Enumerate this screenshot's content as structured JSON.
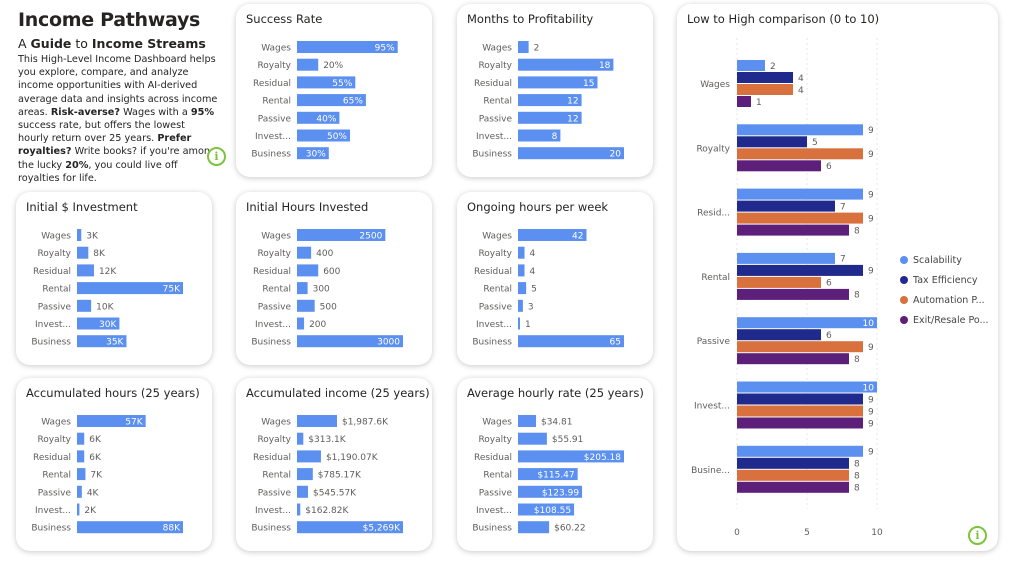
{
  "intro": {
    "title": "Income Pathways",
    "subtitle_pre": "A ",
    "subtitle_b1": "Guide",
    "subtitle_mid": " to ",
    "subtitle_b2": "Income Streams",
    "p1": "This High-Level Income Dashboard helps you explore, compare, and analyze income opportunities with AI-derived average data and insights across income areas. ",
    "b1": "Risk-averse?",
    "p2": " Wages with a ",
    "b2": "95%",
    "p3": " success rate, but offers the lowest hourly return over 25 years. ",
    "b3": "Prefer royalties?",
    "p4": " Write books? if you're among the lucky ",
    "b4": "20%",
    "p5": ", you could live off royalties for life."
  },
  "icons": {
    "info": "i",
    "info_icon_name": "info-circle-icon"
  },
  "colors": {
    "bar": "#5b8ff0",
    "scalability": "#5b8ff0",
    "tax_efficiency": "#1f2a8c",
    "automation": "#d9713e",
    "exit_resale": "#5c1f7a",
    "card_shadow": "rgba(0,0,0,0.22)"
  },
  "chart_data": [
    {
      "id": "success",
      "type": "bar",
      "title": "Success Rate",
      "categories": [
        "Wages",
        "Royalty",
        "Residual",
        "Rental",
        "Passive",
        "Invest...",
        "Business"
      ],
      "values": [
        95,
        20,
        55,
        65,
        40,
        50,
        30
      ],
      "labels": [
        "95%",
        "20%",
        "55%",
        "65%",
        "40%",
        "50%",
        "30%"
      ],
      "max": 100
    },
    {
      "id": "months",
      "type": "bar",
      "title": "Months to Profitability",
      "categories": [
        "Wages",
        "Royalty",
        "Residual",
        "Rental",
        "Passive",
        "Invest...",
        "Business"
      ],
      "values": [
        2,
        18,
        15,
        12,
        12,
        8,
        20
      ],
      "labels": [
        "2",
        "18",
        "15",
        "12",
        "12",
        "8",
        "20"
      ],
      "max": 20
    },
    {
      "id": "initial_investment",
      "type": "bar",
      "title": "Initial $ Investment",
      "categories": [
        "Wages",
        "Royalty",
        "Residual",
        "Rental",
        "Passive",
        "Invest...",
        "Business"
      ],
      "values": [
        3000,
        8000,
        12000,
        75000,
        10000,
        30000,
        35000
      ],
      "labels": [
        "3K",
        "8K",
        "12K",
        "75K",
        "10K",
        "30K",
        "35K"
      ],
      "max": 75000
    },
    {
      "id": "initial_hours",
      "type": "bar",
      "title": "Initial Hours Invested",
      "categories": [
        "Wages",
        "Royalty",
        "Residual",
        "Rental",
        "Passive",
        "Invest...",
        "Business"
      ],
      "values": [
        2500,
        400,
        600,
        300,
        500,
        200,
        3000
      ],
      "labels": [
        "2500",
        "400",
        "600",
        "300",
        "500",
        "200",
        "3000"
      ],
      "max": 3000
    },
    {
      "id": "ongoing_hours",
      "type": "bar",
      "title": "Ongoing hours per week",
      "categories": [
        "Wages",
        "Royalty",
        "Residual",
        "Rental",
        "Passive",
        "Invest...",
        "Business"
      ],
      "values": [
        42,
        4,
        4,
        5,
        3,
        1,
        65
      ],
      "labels": [
        "42",
        "4",
        "4",
        "5",
        "3",
        "1",
        "65"
      ],
      "max": 65
    },
    {
      "id": "accum_hours",
      "type": "bar",
      "title": "Accumulated hours (25 years)",
      "categories": [
        "Wages",
        "Royalty",
        "Residual",
        "Rental",
        "Passive",
        "Invest...",
        "Business"
      ],
      "values": [
        57000,
        6000,
        6000,
        7000,
        4000,
        2000,
        88000
      ],
      "labels": [
        "57K",
        "6K",
        "6K",
        "7K",
        "4K",
        "2K",
        "88K"
      ],
      "max": 88000
    },
    {
      "id": "accum_income",
      "type": "bar",
      "title": "Accumulated income (25 years)",
      "categories": [
        "Wages",
        "Royalty",
        "Residual",
        "Rental",
        "Passive",
        "Invest...",
        "Business"
      ],
      "values": [
        1987600,
        313100,
        1190070,
        785170,
        545570,
        162820,
        5269000
      ],
      "labels": [
        "$1,987.6K",
        "$313.1K",
        "$1,190.07K",
        "$785.17K",
        "$545.57K",
        "$162.82K",
        "$5,269K"
      ],
      "max": 5269000
    },
    {
      "id": "hourly_rate",
      "type": "bar",
      "title": "Average hourly rate (25 years)",
      "categories": [
        "Wages",
        "Royalty",
        "Residual",
        "Rental",
        "Passive",
        "Invest...",
        "Business"
      ],
      "values": [
        34.81,
        55.91,
        205.18,
        115.47,
        123.99,
        108.55,
        60.22
      ],
      "labels": [
        "$34.81",
        "$55.91",
        "$205.18",
        "$115.47",
        "$123.99",
        "$108.55",
        "$60.22"
      ],
      "max": 205.18
    },
    {
      "id": "comparison",
      "type": "bar",
      "title": "Low to High comparison (0 to 10)",
      "categories": [
        "Wages",
        "Royalty",
        "Resid...",
        "Rental",
        "Passive",
        "Invest...",
        "Busine..."
      ],
      "series": [
        {
          "name": "Scalability",
          "values": [
            2,
            9,
            9,
            7,
            10,
            10,
            9
          ]
        },
        {
          "name": "Tax Efficiency",
          "values": [
            4,
            5,
            7,
            9,
            6,
            9,
            8
          ]
        },
        {
          "name": "Automation P...",
          "values": [
            4,
            9,
            9,
            6,
            9,
            9,
            8
          ]
        },
        {
          "name": "Exit/Resale Po...",
          "values": [
            1,
            6,
            8,
            8,
            8,
            9,
            8
          ]
        }
      ],
      "xlim": [
        0,
        10
      ],
      "xticks": [
        "0",
        "5",
        "10"
      ],
      "legend_position": "right"
    }
  ]
}
